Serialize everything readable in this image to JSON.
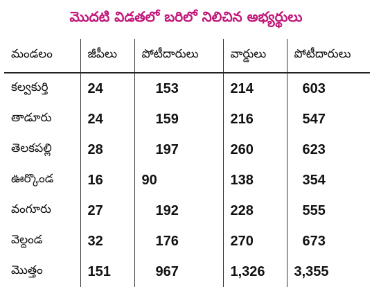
{
  "title": "మొదటి విడతలో బరిలో నిలిచిన అభ్యర్థులు",
  "accent_color": "#c2187a",
  "table": {
    "headers": [
      "మండలం",
      "జీపీలు",
      "పోటీదారులు",
      "వార్డులు",
      "పోటీదారులు"
    ],
    "rows": [
      [
        "కల్వకుర్తి",
        "24",
        "153",
        "214",
        "603"
      ],
      [
        "తాడూరు",
        "24",
        "159",
        "216",
        "547"
      ],
      [
        "తెలకపల్లి",
        "28",
        "197",
        "260",
        "623"
      ],
      [
        "ఊర్కొండ",
        "16",
        "90",
        "138",
        "354"
      ],
      [
        "వంగూరు",
        "27",
        "192",
        "228",
        "555"
      ],
      [
        "వెల్దండ",
        "32",
        "176",
        "270",
        "673"
      ],
      [
        "మొత్తం",
        "151",
        "967",
        "1,326",
        "3,355"
      ]
    ]
  }
}
